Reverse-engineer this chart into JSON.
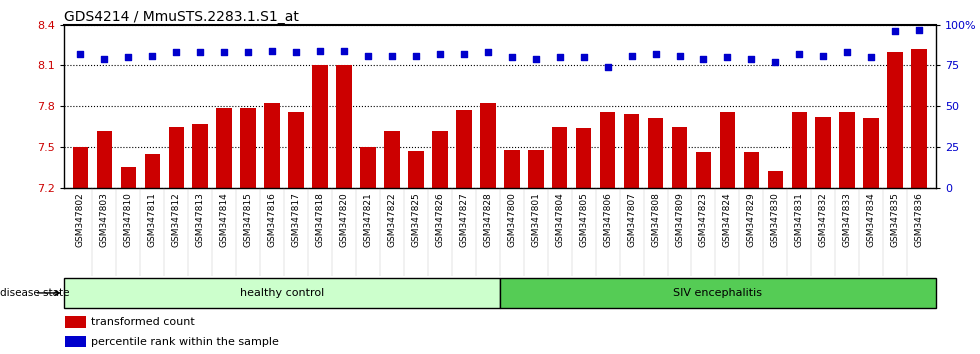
{
  "title": "GDS4214 / MmuSTS.2283.1.S1_at",
  "categories": [
    "GSM347802",
    "GSM347803",
    "GSM347810",
    "GSM347811",
    "GSM347812",
    "GSM347813",
    "GSM347814",
    "GSM347815",
    "GSM347816",
    "GSM347817",
    "GSM347818",
    "GSM347820",
    "GSM347821",
    "GSM347822",
    "GSM347825",
    "GSM347826",
    "GSM347827",
    "GSM347828",
    "GSM347800",
    "GSM347801",
    "GSM347804",
    "GSM347805",
    "GSM347806",
    "GSM347807",
    "GSM347808",
    "GSM347809",
    "GSM347823",
    "GSM347824",
    "GSM347829",
    "GSM347830",
    "GSM347831",
    "GSM347832",
    "GSM347833",
    "GSM347834",
    "GSM347835",
    "GSM347836"
  ],
  "bar_values": [
    7.5,
    7.62,
    7.35,
    7.45,
    7.65,
    7.67,
    7.79,
    7.79,
    7.82,
    7.76,
    8.1,
    8.1,
    7.5,
    7.62,
    7.47,
    7.62,
    7.77,
    7.82,
    7.48,
    7.48,
    7.65,
    7.64,
    7.76,
    7.74,
    7.71,
    7.65,
    7.46,
    7.76,
    7.46,
    7.32,
    7.76,
    7.72,
    7.76,
    7.71,
    8.2,
    8.22
  ],
  "percentile_values": [
    82,
    79,
    80,
    81,
    83,
    83,
    83,
    83,
    84,
    83,
    84,
    84,
    81,
    81,
    81,
    82,
    82,
    83,
    80,
    79,
    80,
    80,
    74,
    81,
    82,
    81,
    79,
    80,
    79,
    77,
    82,
    81,
    83,
    80,
    96,
    97
  ],
  "ymin": 7.2,
  "ymax": 8.4,
  "yticks_left": [
    7.2,
    7.5,
    7.8,
    8.1,
    8.4
  ],
  "yticks_right": [
    0,
    25,
    50,
    75,
    100
  ],
  "bar_color": "#cc0000",
  "dot_color": "#0000cc",
  "healthy_count": 18,
  "healthy_label": "healthy control",
  "siv_label": "SIV encephalitis",
  "disease_state_label": "disease state",
  "legend_bar_label": "transformed count",
  "legend_dot_label": "percentile rank within the sample",
  "healthy_bg": "#ccffcc",
  "siv_bg": "#55cc55",
  "xlabel_bg": "#cccccc",
  "bg_white": "#ffffff"
}
